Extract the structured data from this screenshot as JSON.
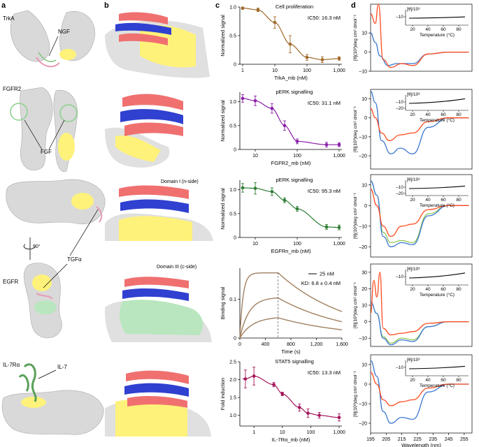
{
  "panels": {
    "a": "a",
    "b": "b",
    "c": "c",
    "d": "d"
  },
  "col_a": {
    "trka": "TrkA",
    "ngf": "NGF",
    "fgfr2": "FGFR2",
    "fgf": "FGF",
    "egfr": "EGFR",
    "rot": "90°",
    "tgfa": "TGFα",
    "il7ra": "IL-7Rα",
    "il7": "IL-7"
  },
  "col_b": {
    "egfr_top": "Domain I (n-side)",
    "egfr_bottom": "Domain III (c-side)"
  },
  "colors": {
    "trka": "#a0692a",
    "fgfr2": "#8a1fa8",
    "egfrn": "#2e7d32",
    "il7": "#a3145a",
    "bli": "#a08060",
    "cd_red": "#ff4b1f",
    "cd_blue": "#3a78d0",
    "cd_green": "#8bc34a",
    "surface_yellow": "#ffee66",
    "surface_green": "#8fd6a0"
  },
  "chart_data": [
    {
      "type": "scatter",
      "id": "trka",
      "title": "Cell proliferation",
      "ic50": "IC50: 16.3 nM",
      "xlabel": "TrkA_mb (nM)",
      "ylabel": "Normalized signal",
      "xscale": "log",
      "xlim": [
        1,
        1000
      ],
      "ylim": [
        0,
        1
      ],
      "xticks": [
        "1",
        "10",
        "100",
        "1,000"
      ],
      "yticks": [
        "0",
        "0.5",
        "1.0"
      ],
      "x": [
        1,
        3,
        10,
        30,
        100,
        300,
        1000
      ],
      "y": [
        0.98,
        0.95,
        0.73,
        0.35,
        0.12,
        0.08,
        0.1
      ],
      "err": [
        0.02,
        0.03,
        0.1,
        0.15,
        0.05,
        0.05,
        0.03
      ]
    },
    {
      "type": "scatter",
      "id": "fgfr2",
      "title": "pERK signalling",
      "ic50": "IC50: 31.1 nM",
      "xlabel": "FGFR2_mb (nM)",
      "ylabel": "Normalized signal",
      "xscale": "log",
      "xlim": [
        5,
        1000
      ],
      "ylim": [
        0,
        1.2
      ],
      "xticks": [
        "10",
        "100",
        "1,000"
      ],
      "yticks": [
        "0",
        "0.5",
        "1.0"
      ],
      "x": [
        5,
        10,
        25,
        50,
        100,
        500,
        1000
      ],
      "y": [
        1.07,
        1.02,
        0.86,
        0.5,
        0.17,
        0.1,
        0.1
      ],
      "err": [
        0.08,
        0.1,
        0.1,
        0.1,
        0.05,
        0.05,
        0.04
      ]
    },
    {
      "type": "scatter",
      "id": "egfrn",
      "title": "pERK signalling",
      "ic50": "IC50: 95.3 nM",
      "xlabel": "EGFRn_mb (nM)",
      "ylabel": "Normalized signal",
      "xscale": "log",
      "xlim": [
        5,
        1000
      ],
      "ylim": [
        0,
        1.2
      ],
      "xticks": [
        "10",
        "100",
        "1,000"
      ],
      "yticks": [
        "0",
        "0.5",
        "1.0"
      ],
      "x": [
        5,
        10,
        25,
        50,
        100,
        500,
        1000
      ],
      "y": [
        1.04,
        1.03,
        0.96,
        0.78,
        0.6,
        0.22,
        0.21
      ],
      "err": [
        0.09,
        0.12,
        0.08,
        0.05,
        0.05,
        0.05,
        0.05
      ]
    },
    {
      "type": "line",
      "id": "bli",
      "legend": "25 nM",
      "kd": "KD: 6.8 ± 0.4 nM",
      "xlabel": "Time (s)",
      "ylabel": "Binding signal",
      "xlim": [
        0,
        1600
      ],
      "ylim": [
        0,
        0.18
      ],
      "xticks": [
        "0",
        "400",
        "800",
        "1,200",
        "1,600"
      ],
      "yticks": [
        "0",
        "0.1"
      ],
      "assoc_end": 600,
      "curve_plateaus": [
        0.168,
        0.105,
        0.055
      ]
    },
    {
      "type": "scatter",
      "id": "il7",
      "title": "STAT5 signalling",
      "ic50": "IC50: 13.3 nM",
      "xlabel": "IL-7Rα_mb (nM)",
      "ylabel": "Fold induction",
      "xscale": "log",
      "xlim": [
        0.4,
        1000
      ],
      "ylim": [
        0.7,
        2.5
      ],
      "xticks": [
        "1",
        "10",
        "100",
        "1,000"
      ],
      "yticks": [
        "1.0",
        "1.5",
        "2.0",
        "2.5"
      ],
      "x": [
        0.5,
        1,
        5,
        10,
        40,
        80,
        200,
        1000
      ],
      "y": [
        2.02,
        2.1,
        1.86,
        1.6,
        1.22,
        1.06,
        1.0,
        0.94
      ],
      "err": [
        0.25,
        0.25,
        0.06,
        0.05,
        0.1,
        0.12,
        0.08,
        0.1
      ]
    }
  ],
  "cd": {
    "ylabel": "[θ](10³)deg cm² dmol⁻¹",
    "xlabel": "Wavelength (nm)",
    "xticks": [
      "195",
      "205",
      "215",
      "225",
      "235",
      "245",
      "255"
    ],
    "inset_ylabel": "[θ]/10³",
    "inset_xlabel": "Temperature (°C)",
    "inset_xticks": [
      "20",
      "40",
      "60",
      "80"
    ],
    "panels": [
      {
        "yticks": [
          "10",
          "0",
          "–10"
        ],
        "inset_yticks": [
          "–10"
        ]
      },
      {
        "yticks": [
          "10",
          "0",
          "–10",
          "–20"
        ],
        "inset_yticks": [
          "–10",
          "–20"
        ]
      },
      {
        "yticks": [
          "10",
          "0",
          "–10",
          "–20"
        ],
        "inset_yticks": [
          "–10",
          "–20"
        ]
      },
      {
        "yticks": [
          "30",
          "20",
          "10",
          "0",
          "–10"
        ],
        "inset_yticks": [
          "–10"
        ]
      },
      {
        "yticks": [
          "10",
          "0",
          "–10",
          "–20"
        ],
        "inset_yticks": [
          "–10"
        ]
      }
    ]
  }
}
